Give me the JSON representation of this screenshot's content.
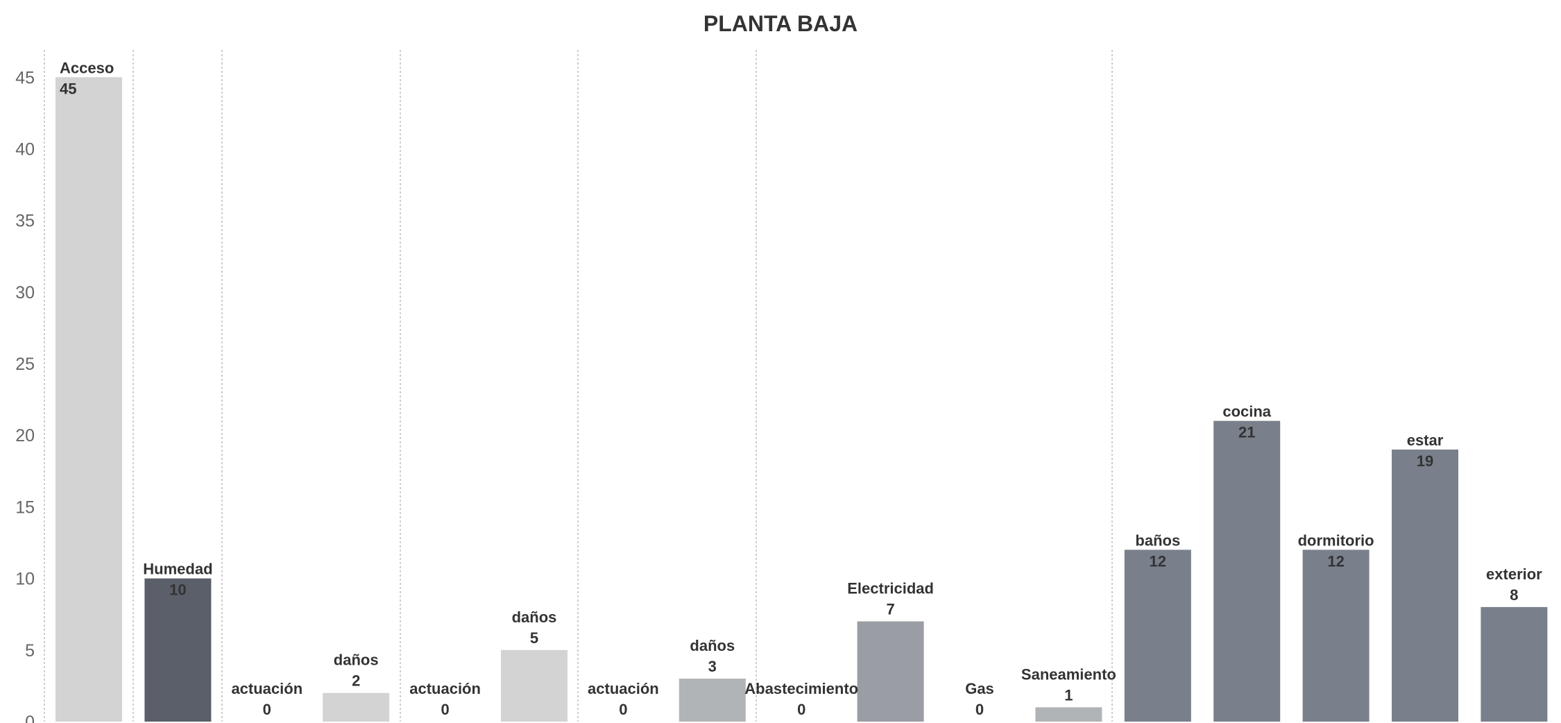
{
  "chart_data": {
    "type": "bar",
    "title": "PLANTA BAJA",
    "xlabel": "",
    "ylabel": "",
    "ylim": [
      0,
      47
    ],
    "yticks": [
      0,
      5,
      10,
      15,
      20,
      25,
      30,
      35,
      40,
      45
    ],
    "grid": "vertical dotted separators between groups",
    "bars": [
      {
        "label": "Acceso",
        "value": 45,
        "group": 0,
        "color": "#d3d3d3"
      },
      {
        "label": "Humedad",
        "value": 10,
        "group": 1,
        "color": "#5a5f69"
      },
      {
        "label": "actuación",
        "value": 0,
        "group": 2,
        "color": "#d3d3d3"
      },
      {
        "label": "daños",
        "value": 2,
        "group": 2,
        "color": "#d3d3d3"
      },
      {
        "label": "actuación",
        "value": 0,
        "group": 3,
        "color": "#d3d3d3"
      },
      {
        "label": "daños",
        "value": 5,
        "group": 3,
        "color": "#d3d3d3"
      },
      {
        "label": "actuación",
        "value": 0,
        "group": 4,
        "color": "#b1b4b6"
      },
      {
        "label": "daños",
        "value": 3,
        "group": 4,
        "color": "#b1b4b6"
      },
      {
        "label": "Abastecimiento",
        "value": 0,
        "group": 5,
        "color": "#9a9da3"
      },
      {
        "label": "Electricidad",
        "value": 7,
        "group": 5,
        "color": "#9a9da3"
      },
      {
        "label": "Gas",
        "value": 0,
        "group": 5,
        "color": "#b1b4b6"
      },
      {
        "label": "Saneamiento",
        "value": 1,
        "group": 5,
        "color": "#b1b4b6"
      },
      {
        "label": "baños",
        "value": 12,
        "group": 6,
        "color": "#79808c"
      },
      {
        "label": "cocina",
        "value": 21,
        "group": 6,
        "color": "#79808c"
      },
      {
        "label": "dormitorio",
        "value": 12,
        "group": 6,
        "color": "#79808c"
      },
      {
        "label": "estar",
        "value": 19,
        "group": 6,
        "color": "#79808c"
      },
      {
        "label": "exterior",
        "value": 8,
        "group": 6,
        "color": "#79808c"
      }
    ]
  }
}
